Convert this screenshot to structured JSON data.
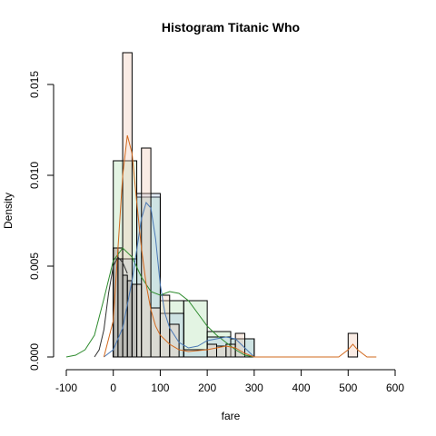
{
  "chart_data": {
    "type": "bar",
    "title": "Histogram Titanic Who",
    "xlabel": "fare",
    "ylabel": "Density",
    "xlim": [
      -100,
      600
    ],
    "ylim": [
      0,
      0.0165
    ],
    "xticks": [
      -100,
      0,
      100,
      200,
      300,
      400,
      500,
      600
    ],
    "yticks": [
      0.0,
      0.005,
      0.01,
      0.015
    ],
    "xtick_labels": [
      "-100",
      "0",
      "100",
      "200",
      "300",
      "400",
      "500",
      "600"
    ],
    "ytick_labels": [
      "0.000",
      "0.005",
      "0.010",
      "0.015"
    ],
    "grid": false,
    "legend": "none",
    "series": [
      {
        "color": "#2e8b2e",
        "fill": "rgba(144, 210, 144, 0.25)",
        "bins": [
          {
            "x0": 0,
            "x1": 50,
            "y": 0.0108
          },
          {
            "x0": 50,
            "x1": 100,
            "y": 0.0088
          },
          {
            "x0": 100,
            "x1": 150,
            "y": 0.0031
          },
          {
            "x0": 150,
            "x1": 200,
            "y": 0.0031
          },
          {
            "x0": 200,
            "x1": 250,
            "y": 0.0014
          },
          {
            "x0": 250,
            "x1": 300,
            "y": 0.001
          }
        ],
        "density": {
          "x": [
            -100,
            -80,
            -60,
            -40,
            -20,
            0,
            20,
            40,
            60,
            80,
            100,
            120,
            140,
            160,
            180,
            200,
            220,
            240,
            260,
            280,
            300
          ],
          "y": [
            0.0,
            0.0001,
            0.0004,
            0.0012,
            0.0032,
            0.0053,
            0.006,
            0.0055,
            0.0044,
            0.0036,
            0.0034,
            0.0036,
            0.0035,
            0.0031,
            0.0024,
            0.0017,
            0.0012,
            0.0008,
            0.0004,
            0.0001,
            0.0
          ]
        }
      },
      {
        "color": "#4a78b4",
        "fill": "rgba(160, 190, 230, 0.3)",
        "bins": [
          {
            "x0": 0,
            "x1": 50,
            "y": 0.0054
          },
          {
            "x0": 50,
            "x1": 100,
            "y": 0.009
          },
          {
            "x0": 100,
            "x1": 150,
            "y": 0.0024
          },
          {
            "x0": 150,
            "x1": 200,
            "y": 0.0004
          },
          {
            "x0": 200,
            "x1": 250,
            "y": 0.0011
          },
          {
            "x0": 250,
            "x1": 300,
            "y": 0.001
          }
        ],
        "density": {
          "x": [
            -20,
            0,
            20,
            40,
            60,
            70,
            80,
            90,
            100,
            110,
            120,
            140,
            160,
            180,
            200,
            220,
            240,
            260,
            280,
            300
          ],
          "y": [
            0.0,
            0.0004,
            0.0016,
            0.0042,
            0.0076,
            0.0085,
            0.0082,
            0.0065,
            0.004,
            0.0024,
            0.0016,
            0.0008,
            0.0005,
            0.0006,
            0.0009,
            0.001,
            0.0011,
            0.001,
            0.0005,
            0.0
          ]
        }
      },
      {
        "color": "#d2691e",
        "fill": "rgba(240, 200, 180, 0.35)",
        "bins": [
          {
            "x0": 0,
            "x1": 20,
            "y": 0.006
          },
          {
            "x0": 20,
            "x1": 40,
            "y": 0.0168
          },
          {
            "x0": 40,
            "x1": 60,
            "y": 0.004
          },
          {
            "x0": 60,
            "x1": 80,
            "y": 0.0115
          },
          {
            "x0": 80,
            "x1": 100,
            "y": 0.0027
          },
          {
            "x0": 100,
            "x1": 120,
            "y": 0.0034
          },
          {
            "x0": 120,
            "x1": 140,
            "y": 0.0018
          },
          {
            "x0": 200,
            "x1": 220,
            "y": 0.0007
          },
          {
            "x0": 220,
            "x1": 240,
            "y": 0.0006
          },
          {
            "x0": 240,
            "x1": 260,
            "y": 0.0007
          },
          {
            "x0": 260,
            "x1": 280,
            "y": 0.0013
          },
          {
            "x0": 500,
            "x1": 520,
            "y": 0.0013
          }
        ],
        "density": {
          "x": [
            -20,
            0,
            10,
            20,
            30,
            40,
            50,
            60,
            70,
            80,
            90,
            100,
            120,
            140,
            160,
            200,
            240,
            260,
            280,
            300,
            400,
            480,
            500,
            510,
            520,
            540,
            560
          ],
          "y": [
            0.0,
            0.002,
            0.006,
            0.01,
            0.0122,
            0.0112,
            0.0085,
            0.006,
            0.004,
            0.0026,
            0.0017,
            0.0012,
            0.0007,
            0.0004,
            0.0003,
            0.0004,
            0.0006,
            0.0005,
            0.0002,
            0.0,
            0.0,
            0.0,
            0.0004,
            0.0007,
            0.0004,
            0.0,
            0.0
          ]
        }
      },
      {
        "color": "#333333",
        "fill": "rgba(120, 120, 120, 0.3)",
        "bins": [
          {
            "x0": 0,
            "x1": 10,
            "y": 0.006
          },
          {
            "x0": 10,
            "x1": 20,
            "y": 0.0054
          },
          {
            "x0": 20,
            "x1": 30,
            "y": 0.0045
          },
          {
            "x0": 30,
            "x1": 40,
            "y": 0.0042
          },
          {
            "x0": 40,
            "x1": 50,
            "y": 0.004
          }
        ],
        "density": {
          "x": [
            -40,
            -30,
            -20,
            -10,
            0,
            10,
            20,
            30
          ],
          "y": [
            0.0,
            0.0004,
            0.0015,
            0.0035,
            0.005,
            0.0055,
            0.0052,
            0.0046
          ]
        }
      }
    ]
  }
}
